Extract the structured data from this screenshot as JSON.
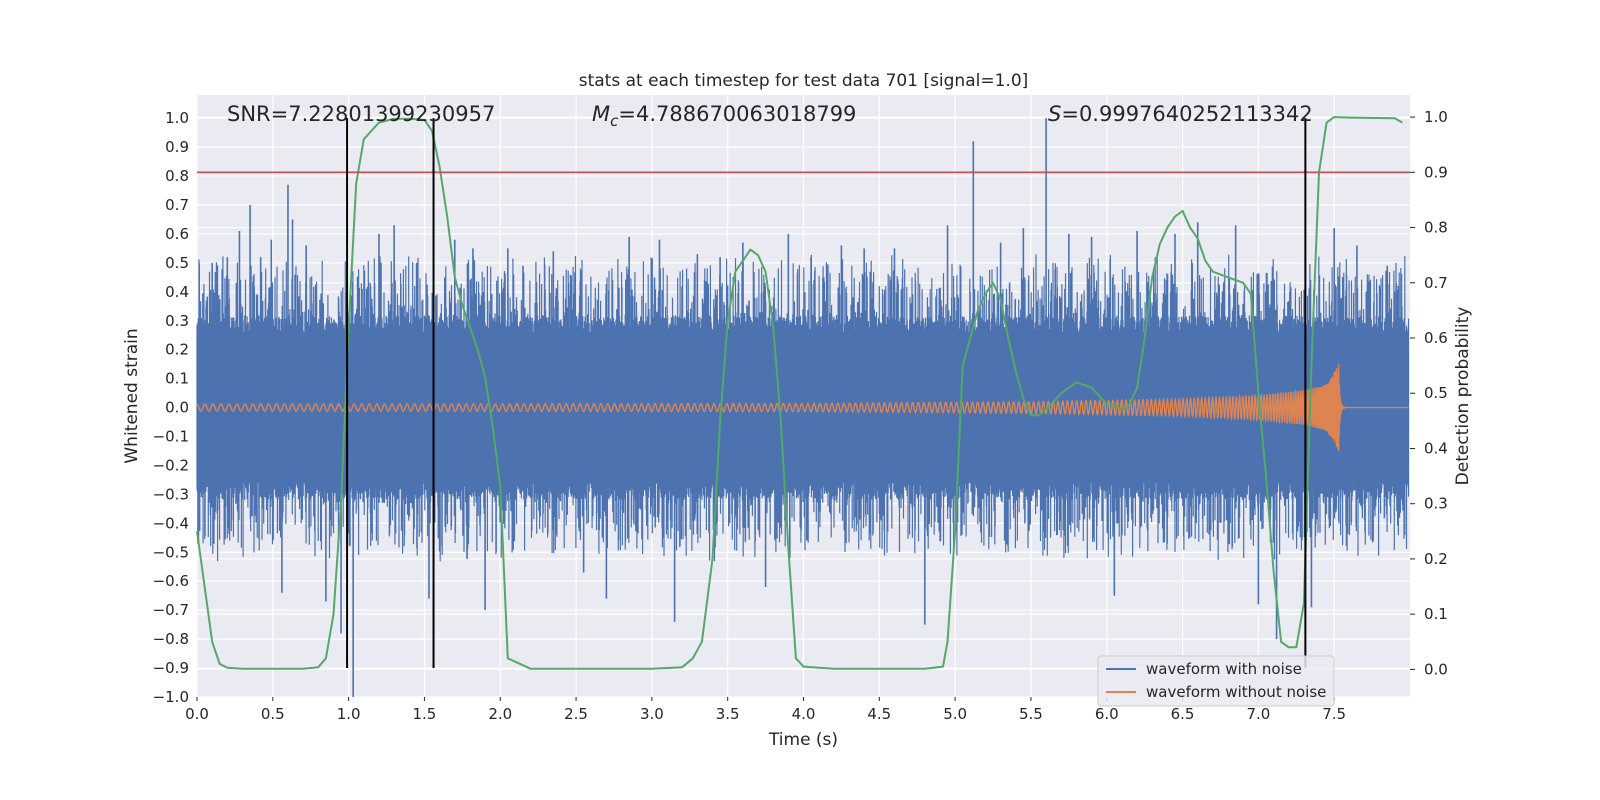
{
  "chart_data": {
    "type": "line",
    "title": "stats at each timestep for test data 701 [signal=1.0]",
    "xlabel": "Time (s)",
    "ylabel": "Whitened strain",
    "y2label": "Detection probability",
    "xlim": [
      0.0,
      8.0
    ],
    "ylim": [
      -1.0,
      1.08
    ],
    "y2lim": [
      -0.05,
      1.04
    ],
    "xticks": [
      "0.0",
      "0.5",
      "1.0",
      "1.5",
      "2.0",
      "2.5",
      "3.0",
      "3.5",
      "4.0",
      "4.5",
      "5.0",
      "5.5",
      "6.0",
      "6.5",
      "7.0",
      "7.5"
    ],
    "yticks": [
      "−1.0",
      "−0.9",
      "−0.8",
      "−0.7",
      "−0.6",
      "−0.5",
      "−0.4",
      "−0.3",
      "−0.2",
      "−0.1",
      "0.0",
      "0.1",
      "0.2",
      "0.3",
      "0.4",
      "0.5",
      "0.6",
      "0.7",
      "0.8",
      "0.9",
      "1.0"
    ],
    "y2ticks": [
      "0.0",
      "0.1",
      "0.2",
      "0.3",
      "0.4",
      "0.5",
      "0.6",
      "0.7",
      "0.8",
      "0.9",
      "1.0"
    ],
    "annotations": {
      "snr": "SNR=7.22801399230957",
      "mc_symbol": "M",
      "mc_sub": "c",
      "mc_value": "=4.788670063018799",
      "s_symbol": "S",
      "s_value": "=0.9997640252113342"
    },
    "legend": {
      "position": "lower-right",
      "entries": [
        "waveform with noise",
        "waveform without noise"
      ]
    },
    "colors": {
      "noise": "#4c72b0",
      "clean": "#dd8452",
      "probability": "#55a868",
      "threshold": "#c44e52",
      "markers": "#000000",
      "plot_bg": "#eaeaf2",
      "grid": "#ffffff"
    },
    "threshold": 0.9,
    "markers_x": [
      0.99,
      1.56,
      7.31
    ],
    "series": [
      {
        "name": "waveform with noise",
        "kind": "noise",
        "t_range": [
          0.0,
          7.99
        ],
        "envelope": 0.29,
        "spikes": [
          [
            0.1,
            0.5
          ],
          [
            0.2,
            0.52
          ],
          [
            0.28,
            0.61
          ],
          [
            0.35,
            0.7
          ],
          [
            0.42,
            0.52
          ],
          [
            0.49,
            0.58
          ],
          [
            0.56,
            -0.64
          ],
          [
            0.6,
            0.77
          ],
          [
            0.63,
            0.65
          ],
          [
            0.72,
            0.56
          ],
          [
            0.85,
            -0.67
          ],
          [
            0.95,
            -0.78
          ],
          [
            1.03,
            -1.0
          ],
          [
            1.2,
            0.6
          ],
          [
            1.3,
            0.63
          ],
          [
            1.45,
            0.5
          ],
          [
            1.53,
            -0.66
          ],
          [
            1.7,
            0.58
          ],
          [
            1.82,
            0.55
          ],
          [
            1.9,
            -0.7
          ],
          [
            2.05,
            0.55
          ],
          [
            2.15,
            0.49
          ],
          [
            2.35,
            0.54
          ],
          [
            2.55,
            -0.57
          ],
          [
            2.7,
            -0.66
          ],
          [
            2.85,
            0.59
          ],
          [
            3.05,
            0.58
          ],
          [
            3.15,
            -0.74
          ],
          [
            3.3,
            0.53
          ],
          [
            3.45,
            0.52
          ],
          [
            3.6,
            0.57
          ],
          [
            3.75,
            -0.62
          ],
          [
            3.9,
            0.6
          ],
          [
            4.05,
            0.52
          ],
          [
            4.25,
            0.56
          ],
          [
            4.4,
            0.55
          ],
          [
            4.6,
            0.55
          ],
          [
            4.8,
            -0.75
          ],
          [
            4.95,
            0.63
          ],
          [
            5.12,
            0.92
          ],
          [
            5.3,
            0.57
          ],
          [
            5.45,
            0.62
          ],
          [
            5.6,
            1.0
          ],
          [
            5.75,
            0.6
          ],
          [
            5.9,
            0.59
          ],
          [
            6.05,
            -0.65
          ],
          [
            6.2,
            0.61
          ],
          [
            6.45,
            0.6
          ],
          [
            6.6,
            0.64
          ],
          [
            6.85,
            0.63
          ],
          [
            7.0,
            -0.68
          ],
          [
            7.12,
            -0.8
          ],
          [
            7.35,
            -0.69
          ],
          [
            7.5,
            0.62
          ],
          [
            7.65,
            0.56
          ],
          [
            7.85,
            0.49
          ]
        ]
      },
      {
        "name": "waveform without noise",
        "kind": "chirp",
        "t_range": [
          0.0,
          7.99
        ],
        "merger_time": 7.53,
        "ringdown_end": 7.57,
        "peak_amplitude": 0.15,
        "early_amplitude": 0.012,
        "amplitude_at": [
          [
            0.0,
            0.012
          ],
          [
            4.0,
            0.014
          ],
          [
            5.5,
            0.02
          ],
          [
            6.5,
            0.03
          ],
          [
            7.0,
            0.042
          ],
          [
            7.3,
            0.06
          ],
          [
            7.45,
            0.08
          ],
          [
            7.53,
            0.15
          ]
        ]
      },
      {
        "name": "detection probability",
        "axis": "y2",
        "x": [
          0.0,
          0.05,
          0.1,
          0.15,
          0.2,
          0.3,
          0.5,
          0.7,
          0.8,
          0.85,
          0.9,
          0.95,
          1.0,
          1.05,
          1.1,
          1.2,
          1.3,
          1.4,
          1.5,
          1.55,
          1.6,
          1.65,
          1.7,
          1.75,
          1.8,
          1.85,
          1.9,
          1.95,
          2.0,
          2.05,
          2.2,
          2.5,
          3.0,
          3.2,
          3.27,
          3.33,
          3.4,
          3.45,
          3.5,
          3.55,
          3.6,
          3.65,
          3.7,
          3.75,
          3.8,
          3.85,
          3.9,
          3.95,
          4.0,
          4.2,
          4.5,
          4.8,
          4.92,
          4.95,
          5.0,
          5.05,
          5.1,
          5.15,
          5.2,
          5.25,
          5.3,
          5.35,
          5.4,
          5.45,
          5.5,
          5.55,
          5.6,
          5.7,
          5.8,
          5.9,
          6.0,
          6.05,
          6.1,
          6.15,
          6.2,
          6.25,
          6.3,
          6.35,
          6.4,
          6.45,
          6.5,
          6.55,
          6.6,
          6.65,
          6.7,
          6.8,
          6.9,
          6.95,
          7.0,
          7.05,
          7.1,
          7.15,
          7.2,
          7.25,
          7.3,
          7.35,
          7.4,
          7.45,
          7.5,
          7.6,
          7.9,
          7.95
        ],
        "y": [
          0.25,
          0.15,
          0.05,
          0.01,
          0.003,
          0.001,
          0.001,
          0.001,
          0.004,
          0.02,
          0.1,
          0.3,
          0.62,
          0.88,
          0.96,
          0.99,
          0.997,
          0.997,
          0.995,
          0.975,
          0.91,
          0.82,
          0.71,
          0.66,
          0.62,
          0.58,
          0.53,
          0.44,
          0.33,
          0.02,
          0.001,
          0.001,
          0.001,
          0.004,
          0.02,
          0.05,
          0.2,
          0.45,
          0.63,
          0.72,
          0.74,
          0.76,
          0.75,
          0.72,
          0.62,
          0.45,
          0.22,
          0.02,
          0.005,
          0.001,
          0.001,
          0.001,
          0.005,
          0.05,
          0.25,
          0.55,
          0.6,
          0.65,
          0.68,
          0.7,
          0.67,
          0.6,
          0.54,
          0.49,
          0.46,
          0.46,
          0.47,
          0.5,
          0.52,
          0.51,
          0.48,
          0.48,
          0.47,
          0.48,
          0.51,
          0.6,
          0.71,
          0.77,
          0.8,
          0.82,
          0.83,
          0.8,
          0.78,
          0.74,
          0.72,
          0.71,
          0.7,
          0.68,
          0.5,
          0.35,
          0.18,
          0.05,
          0.04,
          0.04,
          0.12,
          0.55,
          0.9,
          0.99,
          1.0,
          0.999,
          0.998,
          0.99
        ]
      }
    ]
  }
}
